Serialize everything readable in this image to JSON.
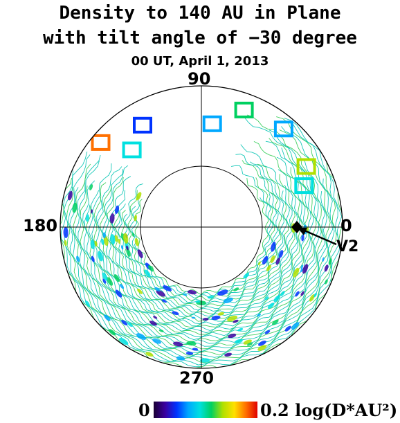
{
  "chart_data": {
    "type": "heatmap",
    "projection": "polar-annulus",
    "title": "Density to 140 AU in Plane",
    "title_line2": "with tilt angle of −30 degree",
    "subtitle": "00 UT, April  1, 2013",
    "angle_labels": {
      "top": "90",
      "left": "180",
      "right": "0",
      "bottom": "270"
    },
    "marker_label": "V2",
    "marker_angle_deg": -3,
    "colorbar": {
      "min_label": "0",
      "max_label": "0.2",
      "units": "log(D*AU²)",
      "range": [
        0,
        0.2
      ]
    },
    "colors": {
      "scale": [
        "#1a0033",
        "#3a00a0",
        "#0033ff",
        "#00a8ff",
        "#00e0e0",
        "#00d060",
        "#b0e000",
        "#ffe000",
        "#ff7000",
        "#e00000"
      ],
      "contour_main": "#16c8b8",
      "contour_alt": "#3fd060"
    }
  }
}
